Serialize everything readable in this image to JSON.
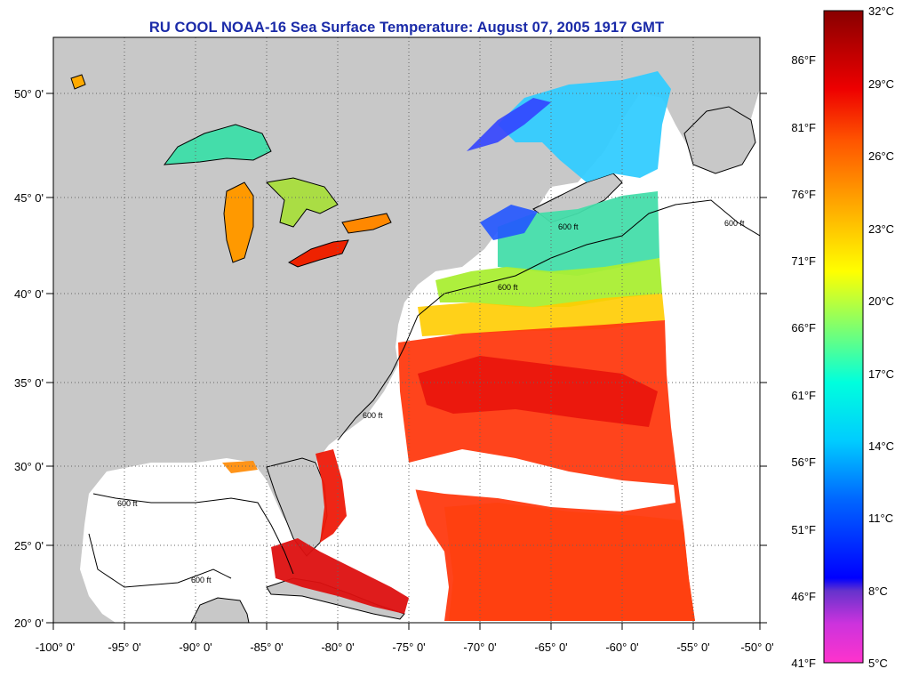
{
  "title": "RU COOL  NOAA-16  Sea Surface Temperature:  August 07, 2005 1917 GMT",
  "map": {
    "lon_labels": [
      "-100° 0'",
      "-95° 0'",
      "-90° 0'",
      "-85° 0'",
      "-80° 0'",
      "-75° 0'",
      "-70° 0'",
      "-65° 0'",
      "-60° 0'",
      "-55° 0'",
      "-50° 0'"
    ],
    "lat_labels": [
      "50° 0'",
      "45° 0'",
      "40° 0'",
      "35° 0'",
      "30° 0'",
      "25° 0'",
      "20° 0'"
    ],
    "contour_label": "600 ft",
    "colors": {
      "land": "#c8c8c8",
      "ocean_no_data": "#ffffff",
      "coastline": "#000000",
      "title": "#1a2aa8"
    }
  },
  "colorbar": {
    "celsius_labels": [
      "32°C",
      "29°C",
      "26°C",
      "23°C",
      "20°C",
      "17°C",
      "14°C",
      "11°C",
      "8°C",
      "5°C"
    ],
    "fahrenheit_labels": [
      "86°F",
      "81°F",
      "76°F",
      "71°F",
      "66°F",
      "61°F",
      "56°F",
      "51°F",
      "46°F",
      "41°F"
    ],
    "range_celsius": [
      5,
      32
    ],
    "stops": [
      "#ff33cc",
      "#9933cc",
      "#0000ff",
      "#0099ff",
      "#00ffff",
      "#66ff99",
      "#ffff00",
      "#ff9900",
      "#ff3300",
      "#cc0000",
      "#660000"
    ]
  }
}
